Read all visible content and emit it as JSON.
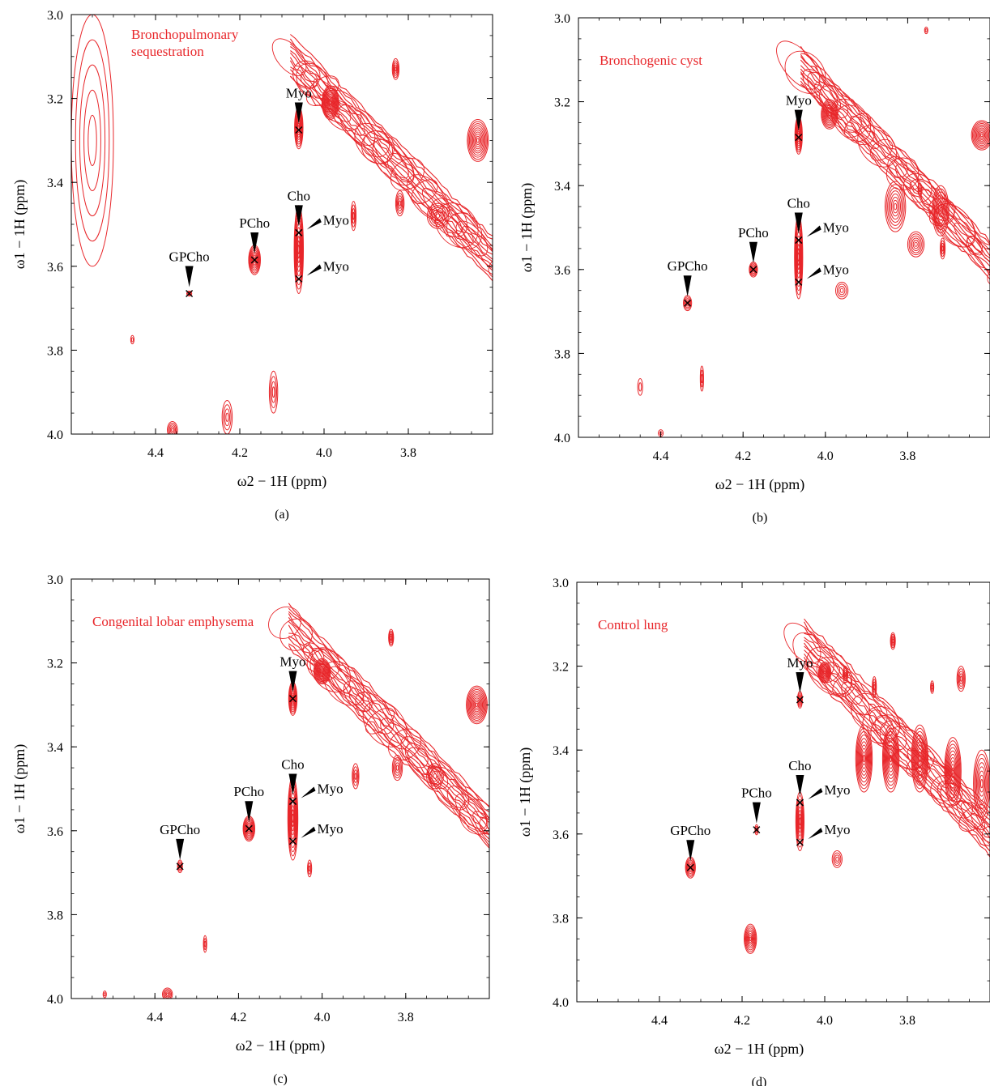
{
  "panels": [
    {
      "caption": "(a)",
      "sample_label": "Bronchopulmonary\nsequestration",
      "xlabel": "ω2 − 1H (ppm)",
      "ylabel": "ω1 − 1H (ppm)",
      "annotations": [
        {
          "label": "GPCho",
          "x": 4.32,
          "y": 3.665,
          "pointer": "down"
        },
        {
          "label": "PCho",
          "x": 4.165,
          "y": 3.585,
          "pointer": "down"
        },
        {
          "label": "Cho",
          "x": 4.06,
          "y": 3.52,
          "pointer": "down"
        },
        {
          "label": "Myo",
          "x": 4.06,
          "y": 3.275,
          "pointer": "down"
        },
        {
          "label": "Myo",
          "x": 4.06,
          "y": 3.52,
          "pointer": "diag"
        },
        {
          "label": "Myo",
          "x": 4.06,
          "y": 3.63,
          "pointer": "diag"
        }
      ]
    },
    {
      "caption": "(b)",
      "sample_label": "Bronchogenic cyst",
      "xlabel": "ω2 − 1H (ppm)",
      "ylabel": "ω1 − 1H (ppm)",
      "annotations": [
        {
          "label": "GPCho",
          "x": 4.335,
          "y": 3.68,
          "pointer": "down"
        },
        {
          "label": "PCho",
          "x": 4.175,
          "y": 3.6,
          "pointer": "down"
        },
        {
          "label": "Cho",
          "x": 4.065,
          "y": 3.53,
          "pointer": "down"
        },
        {
          "label": "Myo",
          "x": 4.065,
          "y": 3.285,
          "pointer": "down"
        },
        {
          "label": "Myo",
          "x": 4.065,
          "y": 3.53,
          "pointer": "diag"
        },
        {
          "label": "Myo",
          "x": 4.065,
          "y": 3.63,
          "pointer": "diag"
        }
      ]
    },
    {
      "caption": "(c)",
      "sample_label": "Congenital lobar emphysema",
      "xlabel": "ω2 − 1H (ppm)",
      "ylabel": "ω1 − 1H (ppm)",
      "annotations": [
        {
          "label": "GPCho",
          "x": 4.34,
          "y": 3.685,
          "pointer": "down"
        },
        {
          "label": "PCho",
          "x": 4.175,
          "y": 3.595,
          "pointer": "down"
        },
        {
          "label": "Cho",
          "x": 4.07,
          "y": 3.53,
          "pointer": "down"
        },
        {
          "label": "Myo",
          "x": 4.07,
          "y": 3.285,
          "pointer": "down"
        },
        {
          "label": "Myo",
          "x": 4.07,
          "y": 3.53,
          "pointer": "diag"
        },
        {
          "label": "Myo",
          "x": 4.07,
          "y": 3.625,
          "pointer": "diag"
        }
      ]
    },
    {
      "caption": "(d)",
      "sample_label": "Control lung",
      "xlabel": "ω2 − 1H (ppm)",
      "ylabel": "ω1 − 1H (ppm)",
      "annotations": [
        {
          "label": "GPCho",
          "x": 4.325,
          "y": 3.68,
          "pointer": "down"
        },
        {
          "label": "PCho",
          "x": 4.165,
          "y": 3.59,
          "pointer": "down"
        },
        {
          "label": "Cho",
          "x": 4.06,
          "y": 3.525,
          "pointer": "down"
        },
        {
          "label": "Myo",
          "x": 4.06,
          "y": 3.28,
          "pointer": "down"
        },
        {
          "label": "Myo",
          "x": 4.06,
          "y": 3.525,
          "pointer": "diag"
        },
        {
          "label": "Myo",
          "x": 4.06,
          "y": 3.62,
          "pointer": "diag"
        }
      ]
    }
  ],
  "chart_data": [
    {
      "type": "contour",
      "title": "Bronchopulmonary sequestration",
      "xlabel": "ω2 − 1H (ppm)",
      "ylabel": "ω1 − 1H (ppm)",
      "xlim": [
        4.6,
        3.6
      ],
      "ylim": [
        3.0,
        4.0
      ],
      "x_ticks": [
        "4.4",
        "4.2",
        "4.0",
        "3.8"
      ],
      "y_ticks": [
        "3.0",
        "3.2",
        "3.4",
        "3.6",
        "3.8",
        "4.0"
      ],
      "contour_color": "#e8262a",
      "peaks": [
        {
          "x": 4.32,
          "y": 3.665,
          "wx": 0.006,
          "wy": 0.006,
          "rings": 3
        },
        {
          "x": 4.165,
          "y": 3.585,
          "wx": 0.014,
          "wy": 0.035,
          "rings": 9
        },
        {
          "x": 4.06,
          "y": 3.27,
          "wx": 0.01,
          "wy": 0.05,
          "rings": 9
        },
        {
          "x": 4.06,
          "y": 3.56,
          "wx": 0.011,
          "wy": 0.105,
          "rings": 10
        },
        {
          "x": 3.985,
          "y": 3.21,
          "wx": 0.02,
          "wy": 0.04,
          "rings": 12
        },
        {
          "x": 3.83,
          "y": 3.13,
          "wx": 0.008,
          "wy": 0.025,
          "rings": 5
        },
        {
          "x": 3.635,
          "y": 3.3,
          "wx": 0.025,
          "wy": 0.05,
          "rings": 10
        },
        {
          "x": 3.93,
          "y": 3.48,
          "wx": 0.006,
          "wy": 0.035,
          "rings": 4
        },
        {
          "x": 3.82,
          "y": 3.45,
          "wx": 0.01,
          "wy": 0.03,
          "rings": 5
        },
        {
          "x": 4.455,
          "y": 3.775,
          "wx": 0.004,
          "wy": 0.01,
          "rings": 2
        },
        {
          "x": 4.36,
          "y": 3.99,
          "wx": 0.012,
          "wy": 0.02,
          "rings": 5
        },
        {
          "x": 4.23,
          "y": 3.96,
          "wx": 0.012,
          "wy": 0.04,
          "rings": 4
        },
        {
          "x": 4.12,
          "y": 3.9,
          "wx": 0.01,
          "wy": 0.05,
          "rings": 4
        },
        {
          "x": 4.55,
          "y": 3.3,
          "wx": 0.05,
          "wy": 0.3,
          "rings": 5
        },
        {
          "x": 3.73,
          "y": 3.48,
          "wx": 0.025,
          "wy": 0.03,
          "rings": 6
        }
      ],
      "diagonal": {
        "offset": -0.315,
        "x_from": 4.08,
        "x_to": 3.6,
        "width": 0.05,
        "rings": 12
      }
    },
    {
      "type": "contour",
      "title": "Bronchogenic cyst",
      "xlabel": "ω2 − 1H (ppm)",
      "ylabel": "ω1 − 1H (ppm)",
      "xlim": [
        4.6,
        3.6
      ],
      "ylim": [
        3.0,
        4.0
      ],
      "x_ticks": [
        "4.4",
        "4.2",
        "4.0",
        "3.8"
      ],
      "y_ticks": [
        "3.0",
        "3.2",
        "3.4",
        "3.6",
        "3.8",
        "4.0"
      ],
      "contour_color": "#e8262a",
      "peaks": [
        {
          "x": 4.335,
          "y": 3.68,
          "wx": 0.01,
          "wy": 0.018,
          "rings": 5
        },
        {
          "x": 4.175,
          "y": 3.6,
          "wx": 0.01,
          "wy": 0.018,
          "rings": 6
        },
        {
          "x": 4.065,
          "y": 3.28,
          "wx": 0.009,
          "wy": 0.045,
          "rings": 9
        },
        {
          "x": 4.065,
          "y": 3.57,
          "wx": 0.01,
          "wy": 0.1,
          "rings": 10
        },
        {
          "x": 3.99,
          "y": 3.23,
          "wx": 0.02,
          "wy": 0.035,
          "rings": 10
        },
        {
          "x": 3.62,
          "y": 3.28,
          "wx": 0.025,
          "wy": 0.035,
          "rings": 10
        },
        {
          "x": 3.755,
          "y": 3.03,
          "wx": 0.004,
          "wy": 0.008,
          "rings": 2
        },
        {
          "x": 3.83,
          "y": 3.45,
          "wx": 0.025,
          "wy": 0.06,
          "rings": 8
        },
        {
          "x": 3.72,
          "y": 3.46,
          "wx": 0.02,
          "wy": 0.06,
          "rings": 8
        },
        {
          "x": 3.77,
          "y": 3.41,
          "wx": 0.005,
          "wy": 0.015,
          "rings": 3
        },
        {
          "x": 3.78,
          "y": 3.54,
          "wx": 0.02,
          "wy": 0.03,
          "rings": 6
        },
        {
          "x": 3.715,
          "y": 3.55,
          "wx": 0.006,
          "wy": 0.025,
          "rings": 4
        },
        {
          "x": 4.45,
          "y": 3.88,
          "wx": 0.006,
          "wy": 0.02,
          "rings": 2
        },
        {
          "x": 4.3,
          "y": 3.86,
          "wx": 0.004,
          "wy": 0.03,
          "rings": 3
        },
        {
          "x": 3.96,
          "y": 3.65,
          "wx": 0.015,
          "wy": 0.02,
          "rings": 4
        },
        {
          "x": 4.4,
          "y": 3.99,
          "wx": 0.006,
          "wy": 0.008,
          "rings": 2
        }
      ],
      "diagonal": {
        "offset": -0.32,
        "x_from": 4.06,
        "x_to": 3.6,
        "width": 0.045,
        "rings": 12
      }
    },
    {
      "type": "contour",
      "title": "Congenital lobar emphysema",
      "xlabel": "ω2 − 1H (ppm)",
      "ylabel": "ω1 − 1H (ppm)",
      "xlim": [
        4.6,
        3.6
      ],
      "ylim": [
        3.0,
        4.0
      ],
      "x_ticks": [
        "4.4",
        "4.2",
        "4.0",
        "3.8"
      ],
      "y_ticks": [
        "3.0",
        "3.2",
        "3.4",
        "3.6",
        "3.8",
        "4.0"
      ],
      "contour_color": "#e8262a",
      "peaks": [
        {
          "x": 4.34,
          "y": 3.685,
          "wx": 0.006,
          "wy": 0.015,
          "rings": 4
        },
        {
          "x": 4.175,
          "y": 3.595,
          "wx": 0.014,
          "wy": 0.03,
          "rings": 9
        },
        {
          "x": 4.07,
          "y": 3.285,
          "wx": 0.01,
          "wy": 0.04,
          "rings": 9
        },
        {
          "x": 4.07,
          "y": 3.57,
          "wx": 0.012,
          "wy": 0.1,
          "rings": 10
        },
        {
          "x": 4.0,
          "y": 3.22,
          "wx": 0.02,
          "wy": 0.03,
          "rings": 11
        },
        {
          "x": 3.835,
          "y": 3.14,
          "wx": 0.006,
          "wy": 0.02,
          "rings": 5
        },
        {
          "x": 3.63,
          "y": 3.3,
          "wx": 0.025,
          "wy": 0.045,
          "rings": 11
        },
        {
          "x": 3.92,
          "y": 3.47,
          "wx": 0.008,
          "wy": 0.03,
          "rings": 4
        },
        {
          "x": 3.82,
          "y": 3.45,
          "wx": 0.012,
          "wy": 0.03,
          "rings": 5
        },
        {
          "x": 3.73,
          "y": 3.47,
          "wx": 0.02,
          "wy": 0.03,
          "rings": 5
        },
        {
          "x": 4.37,
          "y": 3.99,
          "wx": 0.012,
          "wy": 0.015,
          "rings": 5
        },
        {
          "x": 4.28,
          "y": 3.87,
          "wx": 0.004,
          "wy": 0.02,
          "rings": 3
        },
        {
          "x": 4.52,
          "y": 3.99,
          "wx": 0.004,
          "wy": 0.008,
          "rings": 2
        },
        {
          "x": 4.03,
          "y": 3.69,
          "wx": 0.005,
          "wy": 0.02,
          "rings": 3
        }
      ],
      "diagonal": {
        "offset": -0.305,
        "x_from": 4.08,
        "x_to": 3.6,
        "width": 0.05,
        "rings": 12
      }
    },
    {
      "type": "contour",
      "title": "Control lung",
      "xlabel": "ω2 − 1H (ppm)",
      "ylabel": "ω1 − 1H (ppm)",
      "xlim": [
        4.6,
        3.6
      ],
      "ylim": [
        3.0,
        4.0
      ],
      "x_ticks": [
        "4.4",
        "4.2",
        "4.0",
        "3.8"
      ],
      "y_ticks": [
        "3.0",
        "3.2",
        "3.4",
        "3.6",
        "3.8",
        "4.0"
      ],
      "contour_color": "#e8262a",
      "peaks": [
        {
          "x": 4.325,
          "y": 3.68,
          "wx": 0.012,
          "wy": 0.025,
          "rings": 7
        },
        {
          "x": 4.165,
          "y": 3.59,
          "wx": 0.004,
          "wy": 0.012,
          "rings": 3
        },
        {
          "x": 4.06,
          "y": 3.28,
          "wx": 0.006,
          "wy": 0.02,
          "rings": 5
        },
        {
          "x": 4.06,
          "y": 3.57,
          "wx": 0.01,
          "wy": 0.07,
          "rings": 8
        },
        {
          "x": 4.0,
          "y": 3.215,
          "wx": 0.015,
          "wy": 0.025,
          "rings": 9
        },
        {
          "x": 3.95,
          "y": 3.22,
          "wx": 0.006,
          "wy": 0.02,
          "rings": 4
        },
        {
          "x": 3.88,
          "y": 3.25,
          "wx": 0.005,
          "wy": 0.025,
          "rings": 4
        },
        {
          "x": 3.835,
          "y": 3.14,
          "wx": 0.006,
          "wy": 0.02,
          "rings": 5
        },
        {
          "x": 3.74,
          "y": 3.25,
          "wx": 0.004,
          "wy": 0.015,
          "rings": 3
        },
        {
          "x": 3.67,
          "y": 3.23,
          "wx": 0.01,
          "wy": 0.03,
          "rings": 5
        },
        {
          "x": 4.18,
          "y": 3.85,
          "wx": 0.015,
          "wy": 0.035,
          "rings": 8
        },
        {
          "x": 3.905,
          "y": 3.42,
          "wx": 0.02,
          "wy": 0.08,
          "rings": 10
        },
        {
          "x": 3.84,
          "y": 3.42,
          "wx": 0.02,
          "wy": 0.08,
          "rings": 10
        },
        {
          "x": 3.77,
          "y": 3.42,
          "wx": 0.02,
          "wy": 0.08,
          "rings": 10
        },
        {
          "x": 3.69,
          "y": 3.45,
          "wx": 0.02,
          "wy": 0.08,
          "rings": 10
        },
        {
          "x": 3.62,
          "y": 3.48,
          "wx": 0.02,
          "wy": 0.08,
          "rings": 8
        },
        {
          "x": 3.97,
          "y": 3.66,
          "wx": 0.012,
          "wy": 0.02,
          "rings": 4
        }
      ],
      "diagonal": {
        "offset": -0.3,
        "x_from": 4.05,
        "x_to": 3.6,
        "width": 0.055,
        "rings": 13
      }
    }
  ]
}
